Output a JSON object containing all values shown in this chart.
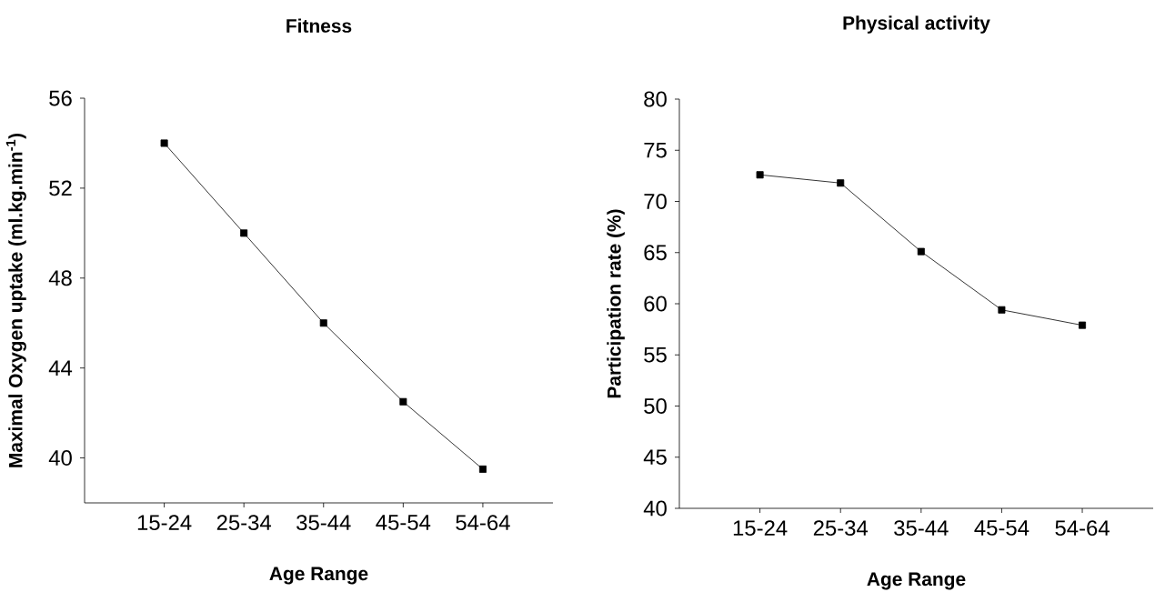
{
  "chart_data": [
    {
      "type": "line",
      "title": "Fitness",
      "xlabel": "Age Range",
      "ylabel": "Maximal Oxygen uptake (ml.kg.min$^{-1}$)",
      "categories": [
        "15-24",
        "25-34",
        "35-44",
        "45-54",
        "54-64"
      ],
      "series": [
        {
          "color": "#000000",
          "values": [
            54,
            50,
            46,
            42.5,
            39.5
          ]
        }
      ],
      "ylim": [
        38,
        56
      ],
      "yticks": [
        40,
        44,
        48,
        52,
        56
      ],
      "marker": "square",
      "line_style": "solid",
      "grid": false,
      "legend": false
    },
    {
      "type": "line",
      "title": "Physical activity",
      "xlabel": "Age Range",
      "ylabel": "Participation rate (%)",
      "categories": [
        "15-24",
        "25-34",
        "35-44",
        "45-54",
        "54-64"
      ],
      "series": [
        {
          "color": "#000000",
          "values": [
            72.6,
            71.8,
            65.1,
            59.4,
            57.9
          ]
        }
      ],
      "ylim": [
        40,
        80
      ],
      "yticks": [
        40,
        45,
        50,
        55,
        60,
        65,
        70,
        75,
        80
      ],
      "marker": "square",
      "line_style": "solid",
      "grid": false,
      "legend": false
    }
  ]
}
